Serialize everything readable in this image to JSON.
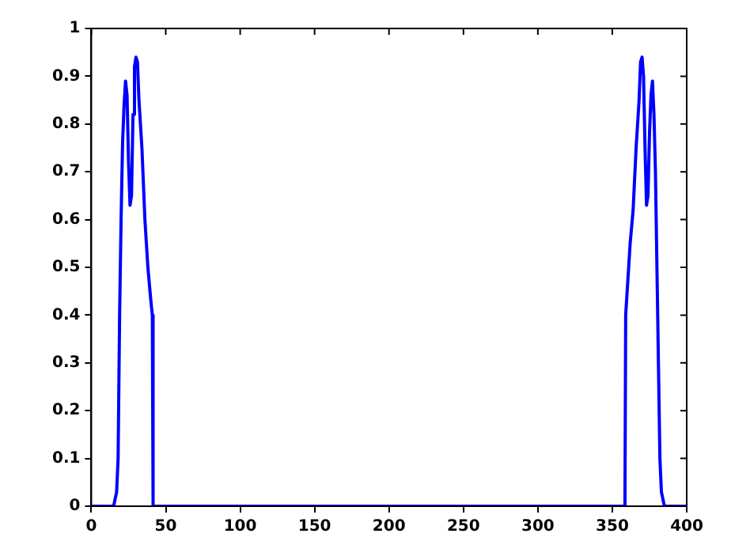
{
  "chart_data": {
    "type": "line",
    "x": [
      0,
      15,
      17,
      18,
      19,
      20,
      21,
      22,
      23,
      24,
      25,
      26,
      27,
      28,
      29,
      30,
      31,
      32,
      34,
      36,
      38,
      40,
      41,
      41.5,
      358.5,
      359,
      360,
      362,
      364,
      366,
      368,
      369,
      370,
      371,
      372,
      373,
      374,
      375,
      376,
      377,
      378,
      379,
      380,
      381,
      382,
      383,
      385,
      400
    ],
    "series": [
      {
        "color": "#0000ff",
        "values": [
          0,
          0,
          0.03,
          0.1,
          0.4,
          0.6,
          0.76,
          0.84,
          0.89,
          0.86,
          0.72,
          0.63,
          0.65,
          0.82,
          0.92,
          0.94,
          0.93,
          0.85,
          0.75,
          0.6,
          0.5,
          0.43,
          0.4,
          0,
          0,
          0.4,
          0.45,
          0.55,
          0.62,
          0.75,
          0.85,
          0.93,
          0.94,
          0.9,
          0.75,
          0.63,
          0.65,
          0.78,
          0.86,
          0.89,
          0.82,
          0.7,
          0.5,
          0.3,
          0.1,
          0.03,
          0,
          0
        ]
      }
    ],
    "xlim": [
      0,
      400
    ],
    "xticks": [
      0,
      50,
      100,
      150,
      200,
      250,
      300,
      350,
      400
    ],
    "ylim": [
      0,
      1
    ],
    "yticks": [
      0,
      0.1,
      0.2,
      0.3,
      0.4,
      0.5,
      0.6,
      0.7,
      0.8,
      0.9,
      1
    ],
    "grid": false,
    "legend": false,
    "marker": "none",
    "line_style": "solid"
  }
}
